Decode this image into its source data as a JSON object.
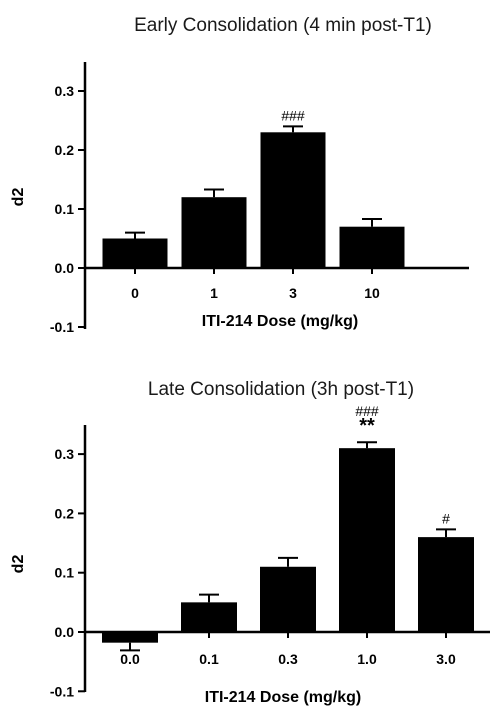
{
  "chart_data": [
    {
      "type": "bar",
      "title": "Early Consolidation (4 min post-T1)",
      "xlabel": "ITI-214 Dose (mg/kg)",
      "ylabel": "d2",
      "categories": [
        "0",
        "1",
        "3",
        "10"
      ],
      "values": [
        0.05,
        0.12,
        0.23,
        0.07
      ],
      "errors": [
        0.01,
        0.013,
        0.01,
        0.013
      ],
      "annotations": [
        "",
        "",
        "###",
        ""
      ],
      "annotations2": [
        "",
        "",
        "",
        ""
      ],
      "yticks": [
        "0.3",
        "0.2",
        "0.1",
        "0.0",
        "-0.1"
      ],
      "ytick_values": [
        0.3,
        0.2,
        0.1,
        0.0,
        -0.1
      ],
      "ylim": [
        -0.1,
        0.35
      ],
      "grid": false,
      "bar_color": "#000000"
    },
    {
      "type": "bar",
      "title": "Late Consolidation (3h post-T1)",
      "xlabel": "ITI-214 Dose (mg/kg)",
      "ylabel": "d2",
      "categories": [
        "0.0",
        "0.1",
        "0.3",
        "1.0",
        "3.0"
      ],
      "values": [
        -0.018,
        0.05,
        0.11,
        0.31,
        0.16
      ],
      "errors": [
        0.013,
        0.013,
        0.015,
        0.01,
        0.013
      ],
      "annotations": [
        "",
        "",
        "",
        "###",
        "#"
      ],
      "annotations2": [
        "",
        "",
        "",
        "**",
        ""
      ],
      "yticks": [
        "0.3",
        "0.2",
        "0.1",
        "0.0",
        "-0.1"
      ],
      "ytick_values": [
        0.3,
        0.2,
        0.1,
        0.0,
        -0.1
      ],
      "ylim": [
        -0.1,
        0.35
      ],
      "grid": false,
      "bar_color": "#000000"
    }
  ]
}
